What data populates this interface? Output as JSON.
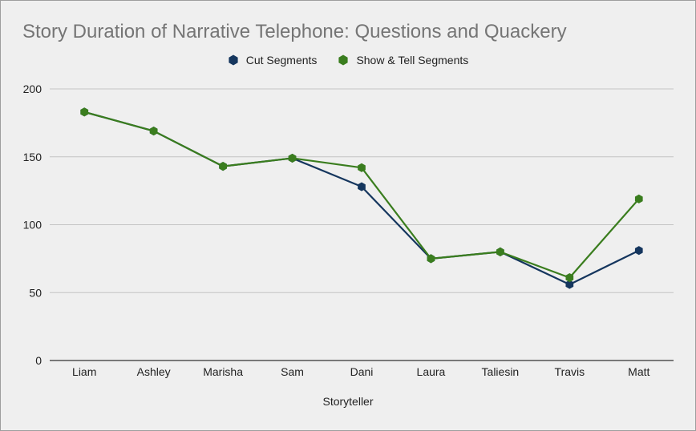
{
  "chart_data": {
    "type": "line",
    "title": "Story Duration of Narrative Telephone: Questions and Quackery",
    "xlabel": "Storyteller",
    "ylabel": "",
    "categories": [
      "Liam",
      "Ashley",
      "Marisha",
      "Sam",
      "Dani",
      "Laura",
      "Taliesin",
      "Travis",
      "Matt"
    ],
    "ylim": [
      0,
      200
    ],
    "yticks": [
      0,
      50,
      100,
      150,
      200
    ],
    "grid": true,
    "legend_position": "top",
    "series": [
      {
        "name": "Cut Segments",
        "color": "#15365e",
        "marker": "hexagon",
        "values": [
          183,
          169,
          143,
          149,
          128,
          75,
          80,
          56,
          81
        ]
      },
      {
        "name": "Show & Tell Segments",
        "color": "#3a7d1e",
        "marker": "hexagon",
        "values": [
          183,
          169,
          143,
          149,
          142,
          75,
          80,
          61,
          119
        ]
      }
    ]
  }
}
